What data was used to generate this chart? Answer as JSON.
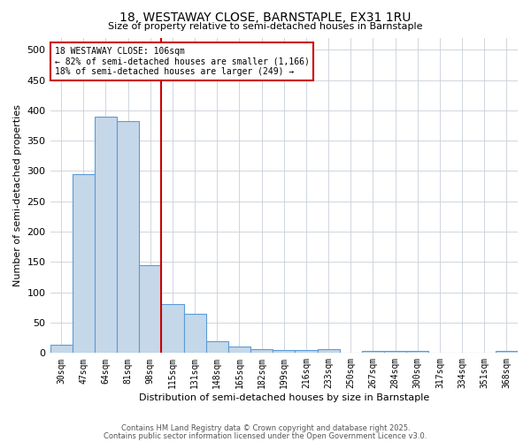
{
  "title": "18, WESTAWAY CLOSE, BARNSTAPLE, EX31 1RU",
  "subtitle": "Size of property relative to semi-detached houses in Barnstaple",
  "xlabel": "Distribution of semi-detached houses by size in Barnstaple",
  "ylabel": "Number of semi-detached properties",
  "categories": [
    "30sqm",
    "47sqm",
    "64sqm",
    "81sqm",
    "98sqm",
    "115sqm",
    "131sqm",
    "148sqm",
    "165sqm",
    "182sqm",
    "199sqm",
    "216sqm",
    "233sqm",
    "250sqm",
    "267sqm",
    "284sqm",
    "300sqm",
    "317sqm",
    "334sqm",
    "351sqm",
    "368sqm"
  ],
  "values": [
    13,
    295,
    390,
    382,
    145,
    80,
    65,
    20,
    10,
    7,
    5,
    5,
    7,
    0,
    3,
    4,
    3,
    0,
    0,
    0,
    3
  ],
  "bar_color": "#c5d8ea",
  "bar_edge_color": "#5b9bd5",
  "vline_color": "#cc0000",
  "annotation_title": "18 WESTAWAY CLOSE: 106sqm",
  "annotation_line1": "← 82% of semi-detached houses are smaller (1,166)",
  "annotation_line2": "18% of semi-detached houses are larger (249) →",
  "annotation_box_color": "#cc0000",
  "ylim": [
    0,
    520
  ],
  "yticks": [
    0,
    50,
    100,
    150,
    200,
    250,
    300,
    350,
    400,
    450,
    500
  ],
  "footnote1": "Contains HM Land Registry data © Crown copyright and database right 2025.",
  "footnote2": "Contains public sector information licensed under the Open Government Licence v3.0.",
  "bg_color": "#ffffff",
  "grid_color": "#c8d0d8"
}
